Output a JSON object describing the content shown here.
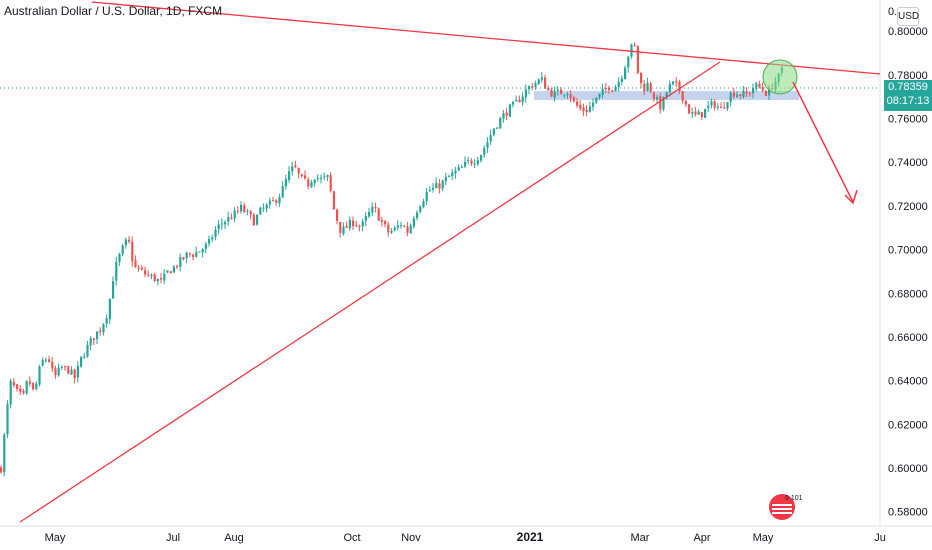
{
  "header": {
    "title": "Australian Dollar / U.S. Dollar, 1D, FXCM"
  },
  "currency_badge": "USD",
  "price_tag": {
    "price": "0.78359",
    "countdown": "08:17:13",
    "color": "#26a69a"
  },
  "top_axis_partial_label": "0.",
  "logo_text": "9 101",
  "colors": {
    "up": "#26a69a",
    "down": "#ef5350",
    "drawing": "#f23645",
    "zone": "#b2c5e8",
    "highlight": "#4caf50"
  },
  "chart_data": {
    "type": "candlestick",
    "title": "Australian Dollar / U.S. Dollar, 1D, FXCM",
    "ylim": [
      0.5785,
      0.8097
    ],
    "y_ticks": [
      "0.80000",
      "0.78000",
      "0.76000",
      "0.74000",
      "0.72000",
      "0.70000",
      "0.68000",
      "0.66000",
      "0.64000",
      "0.62000",
      "0.60000",
      "0.58000"
    ],
    "x_ticks": [
      "May",
      "Jul",
      "Aug",
      "Oct",
      "Nov",
      "2021",
      "Mar",
      "Apr",
      "May",
      "Ju"
    ],
    "x_ticks_bold": [
      "2021"
    ],
    "grid": false,
    "price_path": [
      [
        0,
        0.6
      ],
      [
        6,
        0.627
      ],
      [
        10,
        0.64
      ],
      [
        15,
        0.635
      ],
      [
        22,
        0.632
      ],
      [
        27,
        0.641
      ],
      [
        33,
        0.634
      ],
      [
        40,
        0.648
      ],
      [
        47,
        0.651
      ],
      [
        53,
        0.641
      ],
      [
        60,
        0.646
      ],
      [
        67,
        0.645
      ],
      [
        74,
        0.641
      ],
      [
        80,
        0.65
      ],
      [
        87,
        0.656
      ],
      [
        94,
        0.661
      ],
      [
        100,
        0.664
      ],
      [
        107,
        0.672
      ],
      [
        113,
        0.69
      ],
      [
        120,
        0.699
      ],
      [
        127,
        0.705
      ],
      [
        133,
        0.692
      ],
      [
        140,
        0.69
      ],
      [
        147,
        0.688
      ],
      [
        153,
        0.687
      ],
      [
        160,
        0.685
      ],
      [
        167,
        0.69
      ],
      [
        173,
        0.692
      ],
      [
        180,
        0.695
      ],
      [
        187,
        0.698
      ],
      [
        193,
        0.698
      ],
      [
        200,
        0.7
      ],
      [
        207,
        0.702
      ],
      [
        213,
        0.708
      ],
      [
        220,
        0.712
      ],
      [
        227,
        0.714
      ],
      [
        233,
        0.716
      ],
      [
        240,
        0.719
      ],
      [
        247,
        0.716
      ],
      [
        253,
        0.713
      ],
      [
        260,
        0.718
      ],
      [
        267,
        0.72
      ],
      [
        273,
        0.722
      ],
      [
        280,
        0.726
      ],
      [
        287,
        0.734
      ],
      [
        293,
        0.738
      ],
      [
        300,
        0.732
      ],
      [
        307,
        0.73
      ],
      [
        313,
        0.734
      ],
      [
        320,
        0.732
      ],
      [
        327,
        0.733
      ],
      [
        333,
        0.718
      ],
      [
        340,
        0.708
      ],
      [
        347,
        0.711
      ],
      [
        353,
        0.713
      ],
      [
        360,
        0.71
      ],
      [
        367,
        0.716
      ],
      [
        373,
        0.719
      ],
      [
        380,
        0.713
      ],
      [
        387,
        0.708
      ],
      [
        393,
        0.709
      ],
      [
        400,
        0.712
      ],
      [
        407,
        0.708
      ],
      [
        413,
        0.716
      ],
      [
        420,
        0.722
      ],
      [
        427,
        0.727
      ],
      [
        433,
        0.728
      ],
      [
        440,
        0.73
      ],
      [
        447,
        0.733
      ],
      [
        453,
        0.735
      ],
      [
        460,
        0.737
      ],
      [
        467,
        0.74
      ],
      [
        473,
        0.741
      ],
      [
        480,
        0.744
      ],
      [
        487,
        0.75
      ],
      [
        493,
        0.756
      ],
      [
        500,
        0.76
      ],
      [
        507,
        0.764
      ],
      [
        513,
        0.766
      ],
      [
        520,
        0.77
      ],
      [
        527,
        0.774
      ],
      [
        533,
        0.776
      ],
      [
        540,
        0.778
      ],
      [
        547,
        0.773
      ],
      [
        553,
        0.771
      ],
      [
        560,
        0.772
      ],
      [
        567,
        0.773
      ],
      [
        573,
        0.767
      ],
      [
        580,
        0.764
      ],
      [
        587,
        0.764
      ],
      [
        593,
        0.768
      ],
      [
        600,
        0.771
      ],
      [
        607,
        0.775
      ],
      [
        613,
        0.774
      ],
      [
        620,
        0.779
      ],
      [
        627,
        0.789
      ],
      [
        633,
        0.795
      ],
      [
        638,
        0.777
      ],
      [
        643,
        0.774
      ],
      [
        647,
        0.776
      ],
      [
        653,
        0.77
      ],
      [
        660,
        0.765
      ],
      [
        667,
        0.774
      ],
      [
        673,
        0.776
      ],
      [
        680,
        0.772
      ],
      [
        687,
        0.764
      ],
      [
        693,
        0.761
      ],
      [
        700,
        0.762
      ],
      [
        707,
        0.765
      ],
      [
        713,
        0.767
      ],
      [
        720,
        0.764
      ],
      [
        727,
        0.77
      ],
      [
        733,
        0.772
      ],
      [
        740,
        0.771
      ],
      [
        747,
        0.771
      ],
      [
        753,
        0.775
      ],
      [
        760,
        0.774
      ],
      [
        767,
        0.771
      ],
      [
        773,
        0.777
      ],
      [
        777,
        0.778
      ],
      [
        781,
        0.7836
      ]
    ]
  }
}
